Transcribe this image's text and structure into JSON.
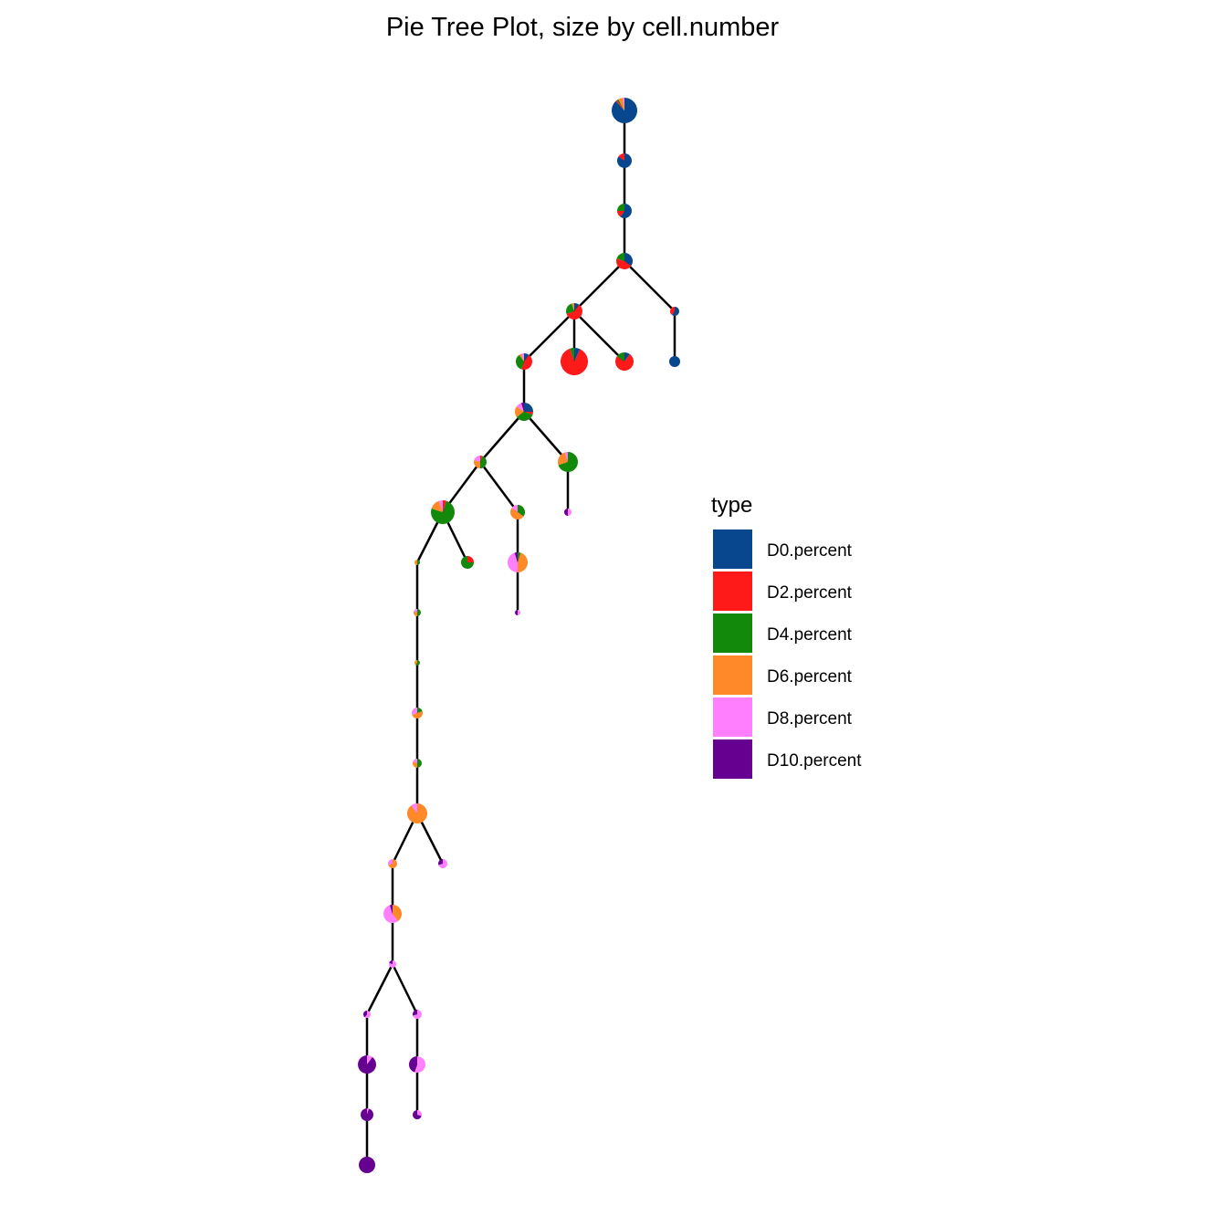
{
  "chart_data": {
    "type": "pie-tree",
    "title": "Pie Tree Plot, size by cell.number",
    "legend": {
      "title": "type",
      "placement": "right",
      "entries": [
        {
          "label": "D0.percent",
          "color": "#08468E"
        },
        {
          "label": "D2.percent",
          "color": "#FF1A1A"
        },
        {
          "label": "D4.percent",
          "color": "#12890A"
        },
        {
          "label": "D6.percent",
          "color": "#FF8828"
        },
        {
          "label": "D8.percent",
          "color": "#FF7FFF"
        },
        {
          "label": "D10.percent",
          "color": "#660090"
        }
      ]
    },
    "grid": false,
    "nodes": [
      {
        "id": 1,
        "parent": null,
        "size": 14,
        "pct": [
          0.88,
          0.02,
          0.02,
          0.06,
          0.02,
          0
        ]
      },
      {
        "id": 2,
        "parent": 1,
        "size": 8,
        "pct": [
          0.85,
          0.15,
          0,
          0,
          0,
          0
        ]
      },
      {
        "id": 3,
        "parent": 2,
        "size": 8,
        "pct": [
          0.6,
          0.15,
          0.25,
          0,
          0,
          0
        ]
      },
      {
        "id": 4,
        "parent": 3,
        "size": 9,
        "pct": [
          0.35,
          0.45,
          0.2,
          0,
          0,
          0
        ]
      },
      {
        "id": 5,
        "parent": 4,
        "size": 9,
        "pct": [
          0.1,
          0.6,
          0.25,
          0.05,
          0,
          0
        ]
      },
      {
        "id": 6,
        "parent": 4,
        "size": 5,
        "pct": [
          0.6,
          0.4,
          0,
          0,
          0,
          0
        ]
      },
      {
        "id": 7,
        "parent": 5,
        "size": 9,
        "pct": [
          0.1,
          0.45,
          0.35,
          0.05,
          0.05,
          0
        ]
      },
      {
        "id": 8,
        "parent": 5,
        "size": 15,
        "pct": [
          0.07,
          0.88,
          0.05,
          0,
          0,
          0
        ]
      },
      {
        "id": 9,
        "parent": 5,
        "size": 10,
        "pct": [
          0.1,
          0.75,
          0.15,
          0,
          0,
          0
        ]
      },
      {
        "id": 10,
        "parent": 6,
        "size": 6,
        "pct": [
          1,
          0,
          0,
          0,
          0,
          0
        ]
      },
      {
        "id": 11,
        "parent": 7,
        "size": 10,
        "pct": [
          0.25,
          0.05,
          0.35,
          0.2,
          0.1,
          0.05
        ]
      },
      {
        "id": 12,
        "parent": 11,
        "size": 7,
        "pct": [
          0,
          0.05,
          0.45,
          0.3,
          0.2,
          0
        ]
      },
      {
        "id": 13,
        "parent": 11,
        "size": 11,
        "pct": [
          0,
          0,
          0.7,
          0.25,
          0.05,
          0
        ]
      },
      {
        "id": 14,
        "parent": 12,
        "size": 13,
        "pct": [
          0,
          0.05,
          0.75,
          0.15,
          0.05,
          0
        ]
      },
      {
        "id": 15,
        "parent": 12,
        "size": 8,
        "pct": [
          0,
          0,
          0.35,
          0.5,
          0.15,
          0
        ]
      },
      {
        "id": 16,
        "parent": 13,
        "size": 4,
        "pct": [
          0,
          0,
          0,
          0,
          0.5,
          0.5
        ]
      },
      {
        "id": 17,
        "parent": 14,
        "size": 3,
        "pct": [
          0,
          0,
          0.5,
          0.5,
          0,
          0
        ]
      },
      {
        "id": 18,
        "parent": 14,
        "size": 7,
        "pct": [
          0,
          0.25,
          0.75,
          0,
          0,
          0
        ]
      },
      {
        "id": 19,
        "parent": 15,
        "size": 11,
        "pct": [
          0,
          0,
          0.05,
          0.45,
          0.45,
          0.05
        ]
      },
      {
        "id": 20,
        "parent": 19,
        "size": 3,
        "pct": [
          0,
          0,
          0,
          0,
          0.5,
          0.5
        ]
      },
      {
        "id": 21,
        "parent": 17,
        "size": 4,
        "pct": [
          0,
          0,
          0.5,
          0.3,
          0.2,
          0
        ]
      },
      {
        "id": 22,
        "parent": 21,
        "size": 3,
        "pct": [
          0,
          0,
          0.6,
          0.4,
          0,
          0
        ]
      },
      {
        "id": 23,
        "parent": 22,
        "size": 6,
        "pct": [
          0,
          0,
          0.2,
          0.5,
          0.3,
          0
        ]
      },
      {
        "id": 24,
        "parent": 23,
        "size": 5,
        "pct": [
          0,
          0,
          0.5,
          0.3,
          0.2,
          0
        ]
      },
      {
        "id": 25,
        "parent": 24,
        "size": 11,
        "pct": [
          0,
          0,
          0,
          0.9,
          0.1,
          0
        ]
      },
      {
        "id": 26,
        "parent": 25,
        "size": 5,
        "pct": [
          0,
          0,
          0,
          0.7,
          0.3,
          0
        ]
      },
      {
        "id": 27,
        "parent": 25,
        "size": 5,
        "pct": [
          0,
          0,
          0,
          0,
          0.7,
          0.3
        ]
      },
      {
        "id": 28,
        "parent": 26,
        "size": 10,
        "pct": [
          0,
          0,
          0,
          0.4,
          0.55,
          0.05
        ]
      },
      {
        "id": 29,
        "parent": 28,
        "size": 4,
        "pct": [
          0,
          0,
          0,
          0,
          0.8,
          0.2
        ]
      },
      {
        "id": 30,
        "parent": 29,
        "size": 4,
        "pct": [
          0,
          0,
          0,
          0,
          0.6,
          0.4
        ]
      },
      {
        "id": 31,
        "parent": 29,
        "size": 5,
        "pct": [
          0,
          0,
          0,
          0,
          0.7,
          0.3
        ]
      },
      {
        "id": 32,
        "parent": 30,
        "size": 10,
        "pct": [
          0,
          0,
          0,
          0,
          0.1,
          0.9
        ]
      },
      {
        "id": 33,
        "parent": 31,
        "size": 9,
        "pct": [
          0,
          0,
          0,
          0,
          0.55,
          0.45
        ]
      },
      {
        "id": 34,
        "parent": 32,
        "size": 7,
        "pct": [
          0,
          0,
          0,
          0,
          0.05,
          0.95
        ]
      },
      {
        "id": 35,
        "parent": 33,
        "size": 5,
        "pct": [
          0,
          0,
          0,
          0,
          0.3,
          0.7
        ]
      },
      {
        "id": 36,
        "parent": 34,
        "size": 9,
        "pct": [
          0,
          0,
          0,
          0,
          0,
          1
        ]
      }
    ]
  }
}
